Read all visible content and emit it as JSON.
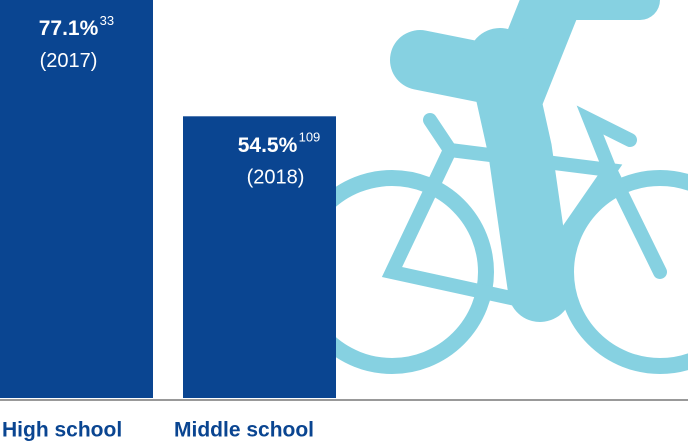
{
  "chart_data": {
    "type": "bar",
    "categories": [
      "High school",
      "Middle school"
    ],
    "values": [
      77.1,
      54.5
    ],
    "value_labels": [
      "77.1%",
      "54.5%"
    ],
    "footnotes": [
      "33",
      "109"
    ],
    "years": [
      "(2017)",
      "(2018)"
    ],
    "color": "#0a4591",
    "ylim": [
      0,
      77
    ]
  }
}
